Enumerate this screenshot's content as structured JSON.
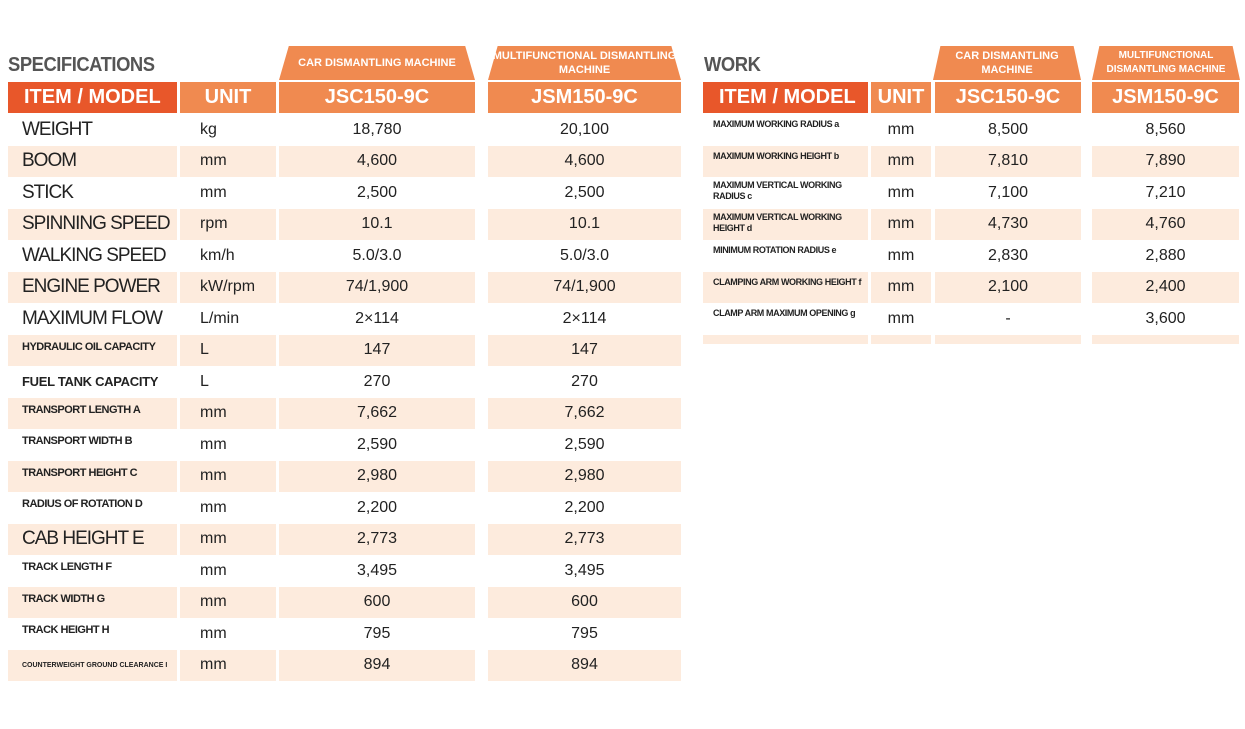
{
  "specifications": {
    "title": "SPECIFICATIONS",
    "machine_types": [
      "CAR DISMANTLING MACHINE",
      "MULTIFUNCTIONAL DISMANTLING MACHINE"
    ],
    "headers": {
      "item": "ITEM / MODEL",
      "unit": "UNIT",
      "model1": "JSC150-9C",
      "model2": "JSM150-9C"
    },
    "rows": [
      {
        "item": "WEIGHT",
        "unit": "kg",
        "v1": "18,780",
        "v2": "20,100"
      },
      {
        "item": "BOOM",
        "unit": "mm",
        "v1": "4,600",
        "v2": "4,600"
      },
      {
        "item": "STICK",
        "unit": "mm",
        "v1": "2,500",
        "v2": "2,500"
      },
      {
        "item": "SPINNING SPEED",
        "unit": "rpm",
        "v1": "10.1",
        "v2": "10.1"
      },
      {
        "item": "WALKING SPEED",
        "unit": "km/h",
        "v1": "5.0/3.0",
        "v2": "5.0/3.0"
      },
      {
        "item": "ENGINE POWER",
        "unit": "kW/rpm",
        "v1": "74/1,900",
        "v2": "74/1,900"
      },
      {
        "item": "MAXIMUM FLOW",
        "unit": "L/min",
        "v1": "2×114",
        "v2": "2×114"
      },
      {
        "item": "HYDRAULIC OIL CAPACITY",
        "unit": "L",
        "v1": "147",
        "v2": "147"
      },
      {
        "item": "FUEL TANK CAPACITY",
        "unit": "L",
        "v1": "270",
        "v2": "270"
      },
      {
        "item": "TRANSPORT LENGTH A",
        "unit": "mm",
        "v1": "7,662",
        "v2": "7,662"
      },
      {
        "item": "TRANSPORT WIDTH B",
        "unit": "mm",
        "v1": "2,590",
        "v2": "2,590"
      },
      {
        "item": "TRANSPORT HEIGHT C",
        "unit": "mm",
        "v1": "2,980",
        "v2": "2,980"
      },
      {
        "item": "RADIUS OF ROTATION D",
        "unit": "mm",
        "v1": "2,200",
        "v2": "2,200"
      },
      {
        "item": "CAB HEIGHT E",
        "unit": "mm",
        "v1": "2,773",
        "v2": "2,773"
      },
      {
        "item": "TRACK LENGTH F",
        "unit": "mm",
        "v1": "3,495",
        "v2": "3,495"
      },
      {
        "item": "TRACK WIDTH G",
        "unit": "mm",
        "v1": "600",
        "v2": "600"
      },
      {
        "item": "TRACK HEIGHT H",
        "unit": "mm",
        "v1": "795",
        "v2": "795"
      },
      {
        "item": "COUNTERWEIGHT GROUND CLEARANCE I",
        "unit": "mm",
        "v1": "894",
        "v2": "894"
      }
    ]
  },
  "work": {
    "title": "WORK",
    "machine_types": [
      "CAR DISMANTLING MACHINE",
      "MULTIFUNCTIONAL DISMANTLING MACHINE"
    ],
    "headers": {
      "item": "ITEM / MODEL",
      "unit": "UNIT",
      "model1": "JSC150-9C",
      "model2": "JSM150-9C"
    },
    "rows": [
      {
        "item": "MAXIMUM WORKING RADIUS a",
        "unit": "mm",
        "v1": "8,500",
        "v2": "8,560"
      },
      {
        "item": "MAXIMUM WORKING HEIGHT b",
        "unit": "mm",
        "v1": "7,810",
        "v2": "7,890"
      },
      {
        "item": "MAXIMUM VERTICAL WORKING RADIUS c",
        "unit": "mm",
        "v1": "7,100",
        "v2": "7,210"
      },
      {
        "item": "MAXIMUM VERTICAL WORKING HEIGHT d",
        "unit": "mm",
        "v1": "4,730",
        "v2": "4,760"
      },
      {
        "item": "MINIMUM ROTATION RADIUS e",
        "unit": "mm",
        "v1": "2,830",
        "v2": "2,880"
      },
      {
        "item": "CLAMPING ARM WORKING HEIGHT f",
        "unit": "mm",
        "v1": "2,100",
        "v2": "2,400"
      },
      {
        "item": "CLAMP ARM MAXIMUM OPENING g",
        "unit": "mm",
        "v1": "-",
        "v2": "3,600"
      }
    ]
  },
  "colors": {
    "header_dark": "#E8572A",
    "header_light": "#F08A50",
    "row_shade": "#FDEBDD",
    "title": "#555555"
  }
}
